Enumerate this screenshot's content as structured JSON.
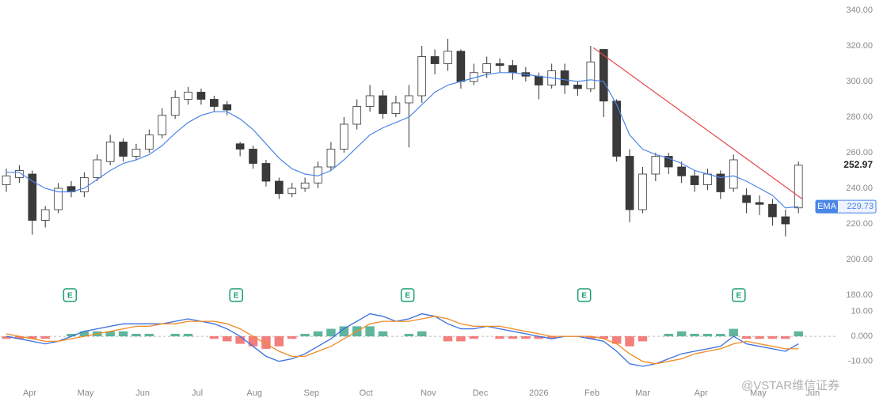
{
  "chart_data": [
    {
      "type": "candlestick",
      "x": [
        0,
        1,
        2,
        3,
        4,
        5,
        6,
        7,
        8,
        9,
        10,
        11,
        12,
        13,
        14,
        15,
        16,
        17,
        18,
        19,
        20,
        21,
        22,
        23,
        24,
        25,
        26,
        27,
        28,
        29,
        30,
        31,
        32,
        33,
        34,
        35,
        36,
        37,
        38,
        39,
        40,
        41,
        42,
        43,
        44,
        45,
        46,
        47,
        48,
        49,
        50,
        51,
        52,
        53,
        54,
        55,
        56,
        57,
        58,
        59,
        60,
        61
      ],
      "open": [
        242,
        246,
        248,
        222,
        228,
        241,
        238,
        246,
        255,
        266,
        258,
        262,
        270,
        281,
        290,
        294,
        290,
        287,
        265,
        262,
        254,
        244,
        237,
        240,
        243,
        252,
        262,
        276,
        286,
        292,
        282,
        288,
        292,
        314,
        310,
        317,
        300,
        305,
        310,
        309,
        305,
        303,
        298,
        306,
        298,
        296,
        318,
        289,
        258,
        228,
        248,
        258,
        252,
        247,
        242,
        248,
        240,
        236,
        232,
        231,
        224,
        229
      ],
      "high": [
        251,
        253,
        250,
        230,
        243,
        244,
        249,
        259,
        270,
        268,
        265,
        273,
        285,
        295,
        297,
        296,
        292,
        289,
        266,
        264,
        256,
        246,
        243,
        246,
        255,
        266,
        280,
        290,
        298,
        295,
        292,
        298,
        320,
        318,
        324,
        318,
        310,
        314,
        313,
        312,
        308,
        305,
        310,
        310,
        300,
        320,
        318,
        290,
        262,
        252,
        260,
        260,
        255,
        250,
        251,
        250,
        259,
        240,
        236,
        234,
        228,
        255
      ],
      "low": [
        238,
        243,
        214,
        218,
        226,
        235,
        235,
        244,
        253,
        255,
        256,
        260,
        268,
        279,
        287,
        287,
        283,
        281,
        258,
        251,
        241,
        234,
        235,
        238,
        240,
        250,
        260,
        273,
        283,
        279,
        280,
        263,
        288,
        304,
        306,
        296,
        298,
        302,
        305,
        301,
        300,
        290,
        296,
        293,
        292,
        294,
        280,
        255,
        221,
        226,
        244,
        248,
        243,
        238,
        239,
        234,
        238,
        226,
        225,
        219,
        213,
        226
      ],
      "close": [
        247,
        250,
        222,
        228,
        240,
        238,
        246,
        256,
        266,
        258,
        262,
        270,
        281,
        291,
        294,
        290,
        286,
        284,
        262,
        254,
        244,
        237,
        240,
        243,
        252,
        262,
        276,
        286,
        292,
        282,
        288,
        292,
        314,
        310,
        317,
        300,
        305,
        310,
        309,
        305,
        303,
        298,
        306,
        298,
        296,
        311,
        289,
        258,
        228,
        248,
        258,
        252,
        247,
        242,
        248,
        238,
        256,
        232,
        231,
        224,
        220,
        252.97
      ],
      "last_close_label": "252.97",
      "up_color": "#ffffff",
      "down_color": "#3a3a3a",
      "wick_color": "#333333",
      "xlim": [
        0,
        63
      ],
      "xticks": [
        {
          "value": 1.8,
          "label": "Apr"
        },
        {
          "value": 6.1,
          "label": "May"
        },
        {
          "value": 10.5,
          "label": "Jun"
        },
        {
          "value": 14.7,
          "label": "Jul"
        },
        {
          "value": 19.1,
          "label": "Aug"
        },
        {
          "value": 23.5,
          "label": "Sep"
        },
        {
          "value": 27.7,
          "label": "Oct"
        },
        {
          "value": 32.5,
          "label": "Nov"
        },
        {
          "value": 36.5,
          "label": "Dec"
        },
        {
          "value": 41,
          "label": "2026"
        },
        {
          "value": 45.1,
          "label": "Feb"
        },
        {
          "value": 49,
          "label": "Mar"
        },
        {
          "value": 53.5,
          "label": "Apr"
        },
        {
          "value": 57.9,
          "label": "May"
        },
        {
          "value": 62.1,
          "label": "Jun"
        }
      ],
      "ylim": [
        180,
        340
      ],
      "yticks": [
        {
          "value": 180,
          "label": "180.00"
        },
        {
          "value": 200,
          "label": "200.00"
        },
        {
          "value": 220,
          "label": "220.00"
        },
        {
          "value": 240,
          "label": "240.00"
        },
        {
          "value": 260,
          "label": "260.00"
        },
        {
          "value": 280,
          "label": "280.00"
        },
        {
          "value": 300,
          "label": "300.00"
        },
        {
          "value": 320,
          "label": "320.00"
        },
        {
          "value": 340,
          "label": "340.00"
        }
      ],
      "ema": {
        "name": "EMA",
        "color": "#4a86e8",
        "last_label": "229.73",
        "values": [
          249,
          249,
          244,
          240,
          238,
          238,
          240,
          245,
          250,
          254,
          256,
          259,
          264,
          271,
          277,
          281,
          283,
          283,
          279,
          273,
          265,
          257,
          251,
          248,
          247,
          250,
          256,
          263,
          270,
          274,
          277,
          280,
          287,
          294,
          298,
          300,
          302,
          304,
          305,
          305,
          304,
          303,
          302,
          301,
          300,
          301,
          300,
          287,
          270,
          262,
          259,
          257,
          254,
          250,
          248,
          246,
          247,
          244,
          240,
          236,
          229,
          229.73
        ]
      },
      "trendline": {
        "x": [
          45.2,
          61.3
        ],
        "y": [
          319,
          234
        ],
        "color": "#e5484d"
      },
      "earnings": {
        "x": [
          4.9,
          17.7,
          30.9,
          44.5,
          56.4
        ],
        "label": "E",
        "color": "#1a9e6e"
      },
      "watermark": "@VSTAR维信证券"
    },
    {
      "type": "macd",
      "ylim": [
        -12,
        13
      ],
      "yticks": [
        {
          "value": -10,
          "label": "-10.00"
        },
        {
          "value": 0,
          "label": "0.000"
        },
        {
          "value": 10,
          "label": "10.00"
        }
      ],
      "series": [
        {
          "color": "#3b6fe0",
          "values": [
            0,
            -1,
            -2,
            -3,
            -2,
            0,
            2,
            3,
            4,
            5,
            5,
            5,
            5,
            6,
            7,
            6,
            5,
            3,
            0,
            -4,
            -8,
            -10,
            -9,
            -7,
            -4,
            -1,
            3,
            6,
            9,
            8,
            6,
            7,
            9,
            8,
            5,
            3,
            3,
            4,
            3,
            2,
            1,
            0,
            -1,
            0,
            0,
            -1,
            -2,
            -6,
            -11,
            -12,
            -11,
            -9,
            -7,
            -6,
            -5,
            -4,
            0,
            -3,
            -4,
            -5,
            -6,
            -3
          ]
        },
        {
          "color": "#f08a24",
          "values": [
            1,
            0,
            -1,
            -2,
            -2,
            -1,
            0,
            1,
            2,
            3,
            4,
            4,
            5,
            5,
            6,
            6,
            6,
            5,
            3,
            0,
            -3,
            -6,
            -8,
            -8,
            -6,
            -4,
            -1,
            2,
            5,
            6,
            6,
            6,
            7,
            8,
            7,
            5,
            4,
            4,
            4,
            3,
            2,
            1,
            0,
            0,
            0,
            0,
            -1,
            -3,
            -7,
            -10,
            -11,
            -10,
            -9,
            -7,
            -6,
            -5,
            -3,
            -2,
            -3,
            -4,
            -5,
            -5
          ]
        }
      ],
      "histogram": {
        "up_color": "#2a9d7c",
        "down_color": "#ef5350",
        "values": [
          -1,
          -1,
          -1,
          -1,
          0,
          1,
          2,
          2,
          2,
          2,
          1,
          1,
          0,
          1,
          1,
          0,
          -1,
          -2,
          -3,
          -4,
          -5,
          -4,
          -1,
          1,
          2,
          3,
          4,
          4,
          4,
          2,
          0,
          1,
          2,
          0,
          -2,
          -2,
          -1,
          0,
          -1,
          -1,
          -1,
          -1,
          -1,
          0,
          0,
          -1,
          -1,
          -3,
          -4,
          -2,
          0,
          1,
          2,
          1,
          1,
          1,
          3,
          -1,
          -1,
          -1,
          -1,
          2
        ]
      }
    }
  ]
}
